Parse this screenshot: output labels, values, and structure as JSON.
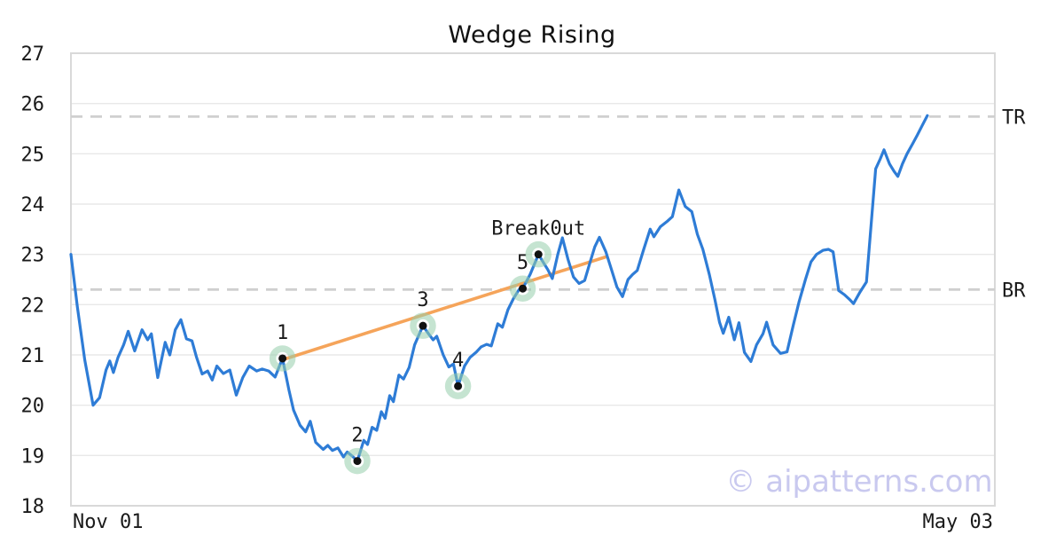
{
  "title": "Wedge Rising",
  "watermark": "© aipatterns.com",
  "colors": {
    "price_line": "#2e7cd6",
    "trendline": "#f5a45a",
    "marker_ring": "#96cdac",
    "marker_dot": "#111111",
    "level_dash": "#cfcfcf",
    "gridline": "#e8e8e8",
    "plot_border": "#d9d9d9",
    "tick_text": "#1a1a1a",
    "watermark_color": "#c9c9ef"
  },
  "chart_data": {
    "type": "line",
    "title": "Wedge Rising",
    "pattern_name": "Wedge Rising",
    "x_axis_units": "fraction of plot width (0 = Nov 01 edge, 1 = right edge)",
    "x_tick_labels": [
      "Nov 01",
      "May 03"
    ],
    "y_ticks": [
      27,
      26,
      25,
      24,
      23,
      22,
      21,
      20,
      19,
      18
    ],
    "ylim": [
      18,
      27
    ],
    "grid": "horizontal-only",
    "legend": "none",
    "series": [
      {
        "name": "price",
        "points": [
          [
            0.0,
            23.0
          ],
          [
            0.007,
            21.95
          ],
          [
            0.015,
            20.9
          ],
          [
            0.024,
            20.0
          ],
          [
            0.031,
            20.15
          ],
          [
            0.038,
            20.7
          ],
          [
            0.042,
            20.88
          ],
          [
            0.046,
            20.65
          ],
          [
            0.051,
            20.95
          ],
          [
            0.057,
            21.2
          ],
          [
            0.062,
            21.47
          ],
          [
            0.069,
            21.08
          ],
          [
            0.077,
            21.5
          ],
          [
            0.083,
            21.3
          ],
          [
            0.087,
            21.42
          ],
          [
            0.094,
            20.55
          ],
          [
            0.102,
            21.25
          ],
          [
            0.107,
            21.0
          ],
          [
            0.113,
            21.5
          ],
          [
            0.119,
            21.7
          ],
          [
            0.125,
            21.32
          ],
          [
            0.131,
            21.28
          ],
          [
            0.136,
            20.95
          ],
          [
            0.142,
            20.62
          ],
          [
            0.148,
            20.68
          ],
          [
            0.153,
            20.5
          ],
          [
            0.158,
            20.78
          ],
          [
            0.165,
            20.63
          ],
          [
            0.172,
            20.7
          ],
          [
            0.179,
            20.2
          ],
          [
            0.186,
            20.55
          ],
          [
            0.193,
            20.78
          ],
          [
            0.201,
            20.68
          ],
          [
            0.207,
            20.72
          ],
          [
            0.214,
            20.68
          ],
          [
            0.221,
            20.56
          ],
          [
            0.229,
            20.93
          ],
          [
            0.236,
            20.3
          ],
          [
            0.241,
            19.9
          ],
          [
            0.248,
            19.6
          ],
          [
            0.254,
            19.47
          ],
          [
            0.259,
            19.68
          ],
          [
            0.265,
            19.26
          ],
          [
            0.273,
            19.12
          ],
          [
            0.278,
            19.2
          ],
          [
            0.283,
            19.1
          ],
          [
            0.289,
            19.15
          ],
          [
            0.295,
            18.97
          ],
          [
            0.299,
            19.07
          ],
          [
            0.305,
            18.98
          ],
          [
            0.31,
            18.89
          ],
          [
            0.317,
            19.3
          ],
          [
            0.321,
            19.22
          ],
          [
            0.326,
            19.56
          ],
          [
            0.331,
            19.5
          ],
          [
            0.336,
            19.87
          ],
          [
            0.34,
            19.74
          ],
          [
            0.345,
            20.19
          ],
          [
            0.349,
            20.07
          ],
          [
            0.355,
            20.6
          ],
          [
            0.36,
            20.52
          ],
          [
            0.366,
            20.75
          ],
          [
            0.372,
            21.2
          ],
          [
            0.381,
            21.58
          ],
          [
            0.387,
            21.42
          ],
          [
            0.392,
            21.3
          ],
          [
            0.396,
            21.37
          ],
          [
            0.403,
            21.0
          ],
          [
            0.409,
            20.76
          ],
          [
            0.414,
            20.82
          ],
          [
            0.419,
            20.38
          ],
          [
            0.426,
            20.78
          ],
          [
            0.432,
            20.95
          ],
          [
            0.439,
            21.06
          ],
          [
            0.444,
            21.16
          ],
          [
            0.45,
            21.21
          ],
          [
            0.455,
            21.18
          ],
          [
            0.462,
            21.62
          ],
          [
            0.467,
            21.55
          ],
          [
            0.473,
            21.9
          ],
          [
            0.479,
            22.12
          ],
          [
            0.485,
            22.3
          ],
          [
            0.489,
            22.32
          ],
          [
            0.497,
            22.6
          ],
          [
            0.506,
            23.0
          ],
          [
            0.512,
            22.82
          ],
          [
            0.516,
            22.7
          ],
          [
            0.521,
            22.52
          ],
          [
            0.527,
            23.0
          ],
          [
            0.532,
            23.33
          ],
          [
            0.538,
            22.9
          ],
          [
            0.544,
            22.55
          ],
          [
            0.55,
            22.42
          ],
          [
            0.556,
            22.48
          ],
          [
            0.562,
            22.85
          ],
          [
            0.567,
            23.15
          ],
          [
            0.572,
            23.34
          ],
          [
            0.579,
            23.05
          ],
          [
            0.585,
            22.7
          ],
          [
            0.591,
            22.35
          ],
          [
            0.597,
            22.16
          ],
          [
            0.603,
            22.5
          ],
          [
            0.608,
            22.6
          ],
          [
            0.613,
            22.68
          ],
          [
            0.62,
            23.1
          ],
          [
            0.627,
            23.5
          ],
          [
            0.631,
            23.35
          ],
          [
            0.638,
            23.55
          ],
          [
            0.645,
            23.65
          ],
          [
            0.651,
            23.75
          ],
          [
            0.658,
            24.28
          ],
          [
            0.665,
            23.95
          ],
          [
            0.672,
            23.85
          ],
          [
            0.678,
            23.4
          ],
          [
            0.684,
            23.1
          ],
          [
            0.691,
            22.6
          ],
          [
            0.697,
            22.1
          ],
          [
            0.702,
            21.65
          ],
          [
            0.706,
            21.43
          ],
          [
            0.712,
            21.75
          ],
          [
            0.718,
            21.3
          ],
          [
            0.723,
            21.64
          ],
          [
            0.729,
            21.05
          ],
          [
            0.736,
            20.87
          ],
          [
            0.742,
            21.2
          ],
          [
            0.749,
            21.42
          ],
          [
            0.753,
            21.65
          ],
          [
            0.76,
            21.2
          ],
          [
            0.768,
            21.03
          ],
          [
            0.775,
            21.06
          ],
          [
            0.782,
            21.6
          ],
          [
            0.788,
            22.05
          ],
          [
            0.795,
            22.5
          ],
          [
            0.801,
            22.85
          ],
          [
            0.807,
            23.0
          ],
          [
            0.814,
            23.08
          ],
          [
            0.82,
            23.1
          ],
          [
            0.825,
            23.05
          ],
          [
            0.831,
            22.28
          ],
          [
            0.837,
            22.2
          ],
          [
            0.843,
            22.1
          ],
          [
            0.847,
            22.02
          ],
          [
            0.854,
            22.25
          ],
          [
            0.861,
            22.45
          ],
          [
            0.871,
            24.7
          ],
          [
            0.876,
            24.9
          ],
          [
            0.88,
            25.08
          ],
          [
            0.886,
            24.8
          ],
          [
            0.891,
            24.65
          ],
          [
            0.895,
            24.55
          ],
          [
            0.9,
            24.8
          ],
          [
            0.905,
            25.0
          ],
          [
            0.911,
            25.2
          ],
          [
            0.916,
            25.37
          ],
          [
            0.921,
            25.55
          ],
          [
            0.927,
            25.76
          ]
        ]
      }
    ],
    "trendline": {
      "from": [
        0.23,
        20.91
      ],
      "to": [
        0.579,
        22.95
      ]
    },
    "levels": [
      {
        "label": "TR",
        "value": 25.74
      },
      {
        "label": "BR",
        "value": 22.3
      }
    ],
    "annotations": [
      {
        "label": "1",
        "x": 0.229,
        "y": 20.93
      },
      {
        "label": "2",
        "x": 0.31,
        "y": 18.89
      },
      {
        "label": "3",
        "x": 0.381,
        "y": 21.58
      },
      {
        "label": "4",
        "x": 0.419,
        "y": 20.38
      },
      {
        "label": "5",
        "x": 0.489,
        "y": 22.32
      },
      {
        "label": "Break0ut",
        "x": 0.506,
        "y": 23.0
      }
    ]
  }
}
